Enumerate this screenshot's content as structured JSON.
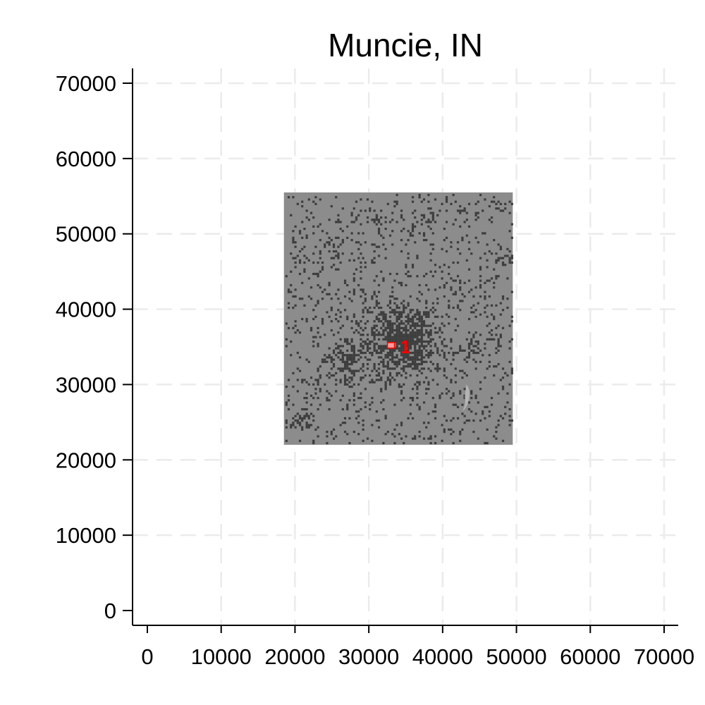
{
  "chart_data": {
    "type": "scatter",
    "title": "Muncie, IN",
    "xlabel": "",
    "ylabel": "",
    "xlim": [
      0,
      70000
    ],
    "ylim": [
      0,
      70000
    ],
    "x_ticks": [
      0,
      10000,
      20000,
      30000,
      40000,
      50000,
      60000,
      70000
    ],
    "y_ticks": [
      0,
      10000,
      20000,
      30000,
      40000,
      50000,
      60000,
      70000
    ],
    "grid": true,
    "colors": {
      "region_fill": "#8c8c8c",
      "developed_cells": "#3c3c3c",
      "water_feature": "#b4b4b4",
      "marker": "#ff0000",
      "marker_fill": "#ff9a9a"
    },
    "region_extent": {
      "x": [
        18500,
        49500
      ],
      "y": [
        22000,
        55500
      ]
    },
    "marker": {
      "x": 33000,
      "y": 35200,
      "label": "1"
    }
  }
}
